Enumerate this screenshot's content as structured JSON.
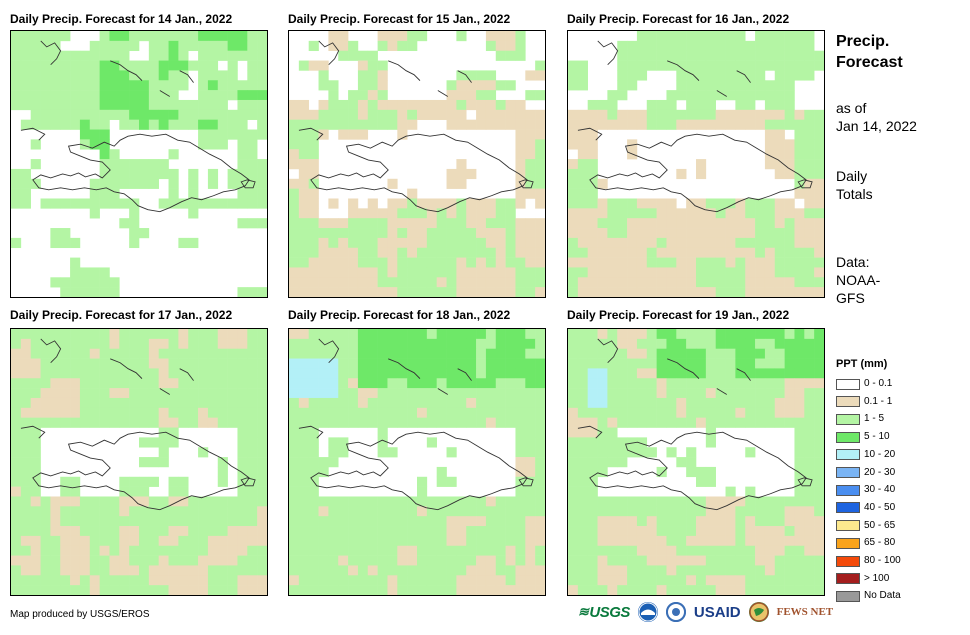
{
  "panels": [
    {
      "title": "Daily Precip. Forecast for 14 Jan., 2022",
      "pattern": "day14"
    },
    {
      "title": "Daily Precip. Forecast for 15 Jan., 2022",
      "pattern": "day15"
    },
    {
      "title": "Daily Precip. Forecast for 16 Jan., 2022",
      "pattern": "day16"
    },
    {
      "title": "Daily Precip. Forecast for 17 Jan., 2022",
      "pattern": "day17"
    },
    {
      "title": "Daily Precip. Forecast for 18 Jan., 2022",
      "pattern": "day18"
    },
    {
      "title": "Daily Precip. Forecast for 19 Jan., 2022",
      "pattern": "day19"
    }
  ],
  "side": {
    "title_line1": "Precip.",
    "title_line2": "Forecast",
    "asof_line1": "as of",
    "asof_line2": "Jan 14, 2022",
    "daily_line1": "Daily",
    "daily_line2": "Totals",
    "data_line1": "Data:",
    "data_line2": "NOAA-",
    "data_line3": "GFS"
  },
  "legend": {
    "title": "PPT (mm)",
    "items": [
      {
        "label": "0 - 0.1",
        "color": "#ffffff"
      },
      {
        "label": "0.1 - 1",
        "color": "#ecdbbb"
      },
      {
        "label": "1 - 5",
        "color": "#b4f5a4"
      },
      {
        "label": "5 - 10",
        "color": "#6ee868"
      },
      {
        "label": "10 - 20",
        "color": "#b3f0f7"
      },
      {
        "label": "20 - 30",
        "color": "#7ab4f4"
      },
      {
        "label": "30 - 40",
        "color": "#4a8ef0"
      },
      {
        "label": "40 - 50",
        "color": "#1e64e0"
      },
      {
        "label": "50 - 65",
        "color": "#fde98e"
      },
      {
        "label": "65 - 80",
        "color": "#f9a31b"
      },
      {
        "label": "80 - 100",
        "color": "#f44a0a"
      },
      {
        "label": "> 100",
        "color": "#a41e1e"
      },
      {
        "label": "No Data",
        "color": "#999999"
      }
    ]
  },
  "credit": "Map produced by USGS/EROS",
  "logos": {
    "usgs": "USGS",
    "usaid": "USAID",
    "fews": "FEWS NET"
  },
  "colors": {
    "none": "#ffffff",
    "tan": "#ecdbbb",
    "lightgreen": "#b4f5a4",
    "green": "#6ee868",
    "cyan": "#b3f0f7",
    "blue": "#7ab4f4"
  }
}
